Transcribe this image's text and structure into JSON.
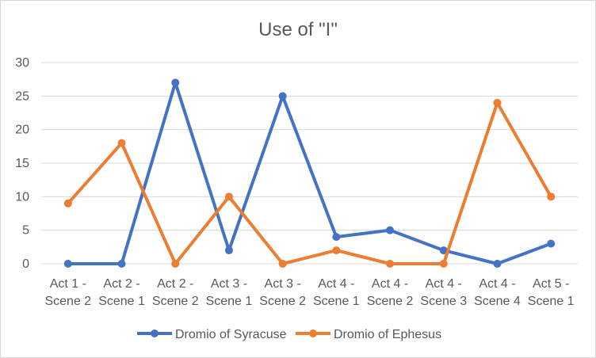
{
  "chart_data": {
    "type": "line",
    "title": "Use of \"I\"",
    "xlabel": "",
    "ylabel": "",
    "ylim": [
      0,
      30
    ],
    "yticks": [
      0,
      5,
      10,
      15,
      20,
      25,
      30
    ],
    "grid": true,
    "legend_position": "bottom",
    "categories": [
      [
        "Act 1 -",
        "Scene 2"
      ],
      [
        "Act 2 -",
        "Scene 1"
      ],
      [
        "Act 2 -",
        "Scene 2"
      ],
      [
        "Act 3 -",
        "Scene 1"
      ],
      [
        "Act 3 -",
        "Scene 2"
      ],
      [
        "Act 4 -",
        "Scene 1"
      ],
      [
        "Act 4 -",
        "Scene 2"
      ],
      [
        "Act 4 -",
        "Scene 3"
      ],
      [
        "Act 4 -",
        "Scene 4"
      ],
      [
        "Act 5 -",
        "Scene 1"
      ]
    ],
    "series": [
      {
        "name": "Dromio of Syracuse",
        "color": "#4472c4",
        "values": [
          0,
          0,
          27,
          2,
          25,
          4,
          5,
          2,
          0,
          3
        ]
      },
      {
        "name": "Dromio of Ephesus",
        "color": "#ed7d31",
        "values": [
          9,
          18,
          0,
          10,
          0,
          2,
          0,
          0,
          24,
          10
        ]
      }
    ]
  }
}
